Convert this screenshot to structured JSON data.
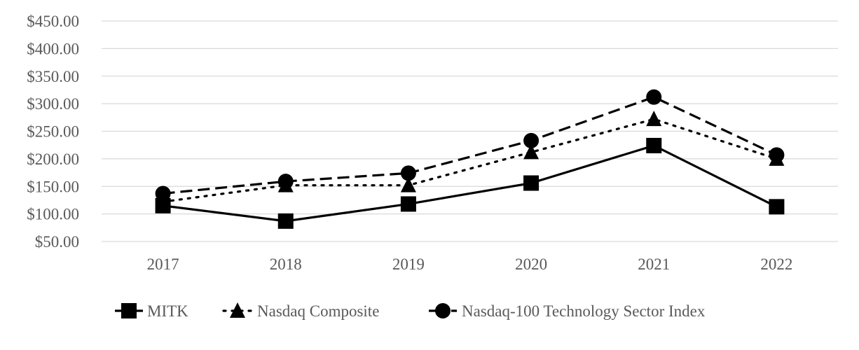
{
  "chart_data": {
    "type": "line",
    "title": "",
    "xlabel": "",
    "ylabel": "",
    "categories": [
      "2017",
      "2018",
      "2019",
      "2020",
      "2021",
      "2022"
    ],
    "ylim": [
      50,
      450
    ],
    "yticks": [
      50,
      100,
      150,
      200,
      250,
      300,
      350,
      400,
      450
    ],
    "ytick_labels": [
      "$50.00",
      "$100.00",
      "$150.00",
      "$200.00",
      "$250.00",
      "$300.00",
      "$350.00",
      "$400.00",
      "$450.00"
    ],
    "grid": true,
    "legend_position": "bottom",
    "series": [
      {
        "name": "MITK",
        "values": [
          115,
          87,
          118,
          156,
          224,
          113
        ],
        "line_style": "solid",
        "marker": "square",
        "color": "#000000"
      },
      {
        "name": "Nasdaq Composite",
        "values": [
          122,
          152,
          152,
          212,
          272,
          200
        ],
        "line_style": "dotted",
        "marker": "triangle",
        "color": "#000000"
      },
      {
        "name": "Nasdaq-100 Technology Sector Index",
        "values": [
          137,
          159,
          174,
          233,
          312,
          207
        ],
        "line_style": "dashed",
        "marker": "circle",
        "color": "#000000"
      }
    ],
    "colors": {
      "grid": "#d9d9d9",
      "text": "#595959"
    }
  }
}
